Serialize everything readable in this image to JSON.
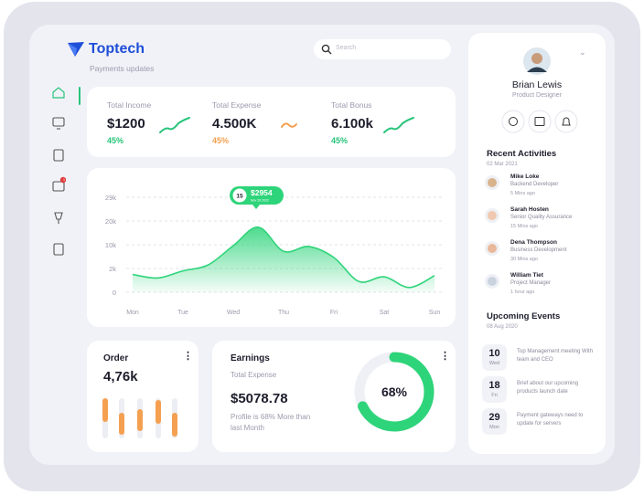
{
  "brand": {
    "name": "Toptech",
    "subtitle": "Payments updates"
  },
  "search": {
    "placeholder": "Search"
  },
  "nav": {
    "badge": "1"
  },
  "stats": [
    {
      "label": "Total Income",
      "value": "$1200",
      "change": "45%",
      "color": "#27c47a"
    },
    {
      "label": "Total Expense",
      "value": "4.500K",
      "change": "45%",
      "color": "#f5a051"
    },
    {
      "label": "Total Bonus",
      "value": "6.100k",
      "change": "45%",
      "color": "#27c47a"
    }
  ],
  "chart": {
    "type": "area",
    "x": [
      0,
      0.5,
      1,
      1.5,
      2,
      2.5,
      3,
      3.5,
      4,
      4.5,
      5,
      5.5,
      6
    ],
    "series": [
      {
        "color": "#2ed47a",
        "values": [
          1500,
          1200,
          1800,
          3200,
          9700,
          17400,
          7800,
          9400,
          5700,
          900,
          1300,
          400,
          1400
        ]
      }
    ],
    "xlim": [
      0,
      6
    ],
    "xticks": [
      {
        "value": 0,
        "label": "Mon"
      },
      {
        "value": 1,
        "label": "Tue"
      },
      {
        "value": 2,
        "label": "Wed"
      },
      {
        "value": 3,
        "label": "Thu"
      },
      {
        "value": 4,
        "label": "Fri"
      },
      {
        "value": 5,
        "label": "Sat"
      },
      {
        "value": 6,
        "label": "Sun"
      }
    ],
    "ylim": [
      0,
      29000
    ],
    "yticks": [
      0,
      {
        "value": 2000,
        "label": "2k"
      },
      {
        "value": 10000,
        "label": "10k"
      },
      {
        "value": 20000,
        "label": "20k"
      },
      {
        "value": 29000,
        "label": "29k"
      }
    ],
    "grid": true,
    "tooltip": {
      "day": "15",
      "value": "$2954",
      "date": "Nov 29 2022"
    }
  },
  "order": {
    "title": "Order",
    "value": "4,76k"
  },
  "earnings": {
    "title": "Earnings",
    "subtitle": "Total Expense",
    "value": "$5078.78",
    "note": "Profile is 68% More than last Month",
    "percent": 68,
    "percent_label": "68%"
  },
  "profile": {
    "name": "Brian Lewis",
    "role": "Product Designer"
  },
  "activities": {
    "title": "Recent Activities",
    "date": "02 Mar 2021",
    "items": [
      {
        "name": "Mike Loke",
        "role": "Backend Developer",
        "time": "5 Mins ago"
      },
      {
        "name": "Sarah Hosten",
        "role": "Senior Quality Assurance",
        "time": "15 Mins ago"
      },
      {
        "name": "Dena Thompson",
        "role": "Business Development",
        "time": "30 Mins ago"
      },
      {
        "name": "William Tiet",
        "role": "Project Manager",
        "time": "1 hour ago"
      }
    ]
  },
  "events": {
    "title": "Upcoming Events",
    "date": "08 Aug 2020",
    "items": [
      {
        "day": "10",
        "weekday": "Wed",
        "text": "Top Management meeting With team and CEO"
      },
      {
        "day": "18",
        "weekday": "Fri",
        "text": "Brief about our upcoming products launch date"
      },
      {
        "day": "29",
        "weekday": "Mon",
        "text": "Payment gateways need to update for servers"
      }
    ]
  }
}
